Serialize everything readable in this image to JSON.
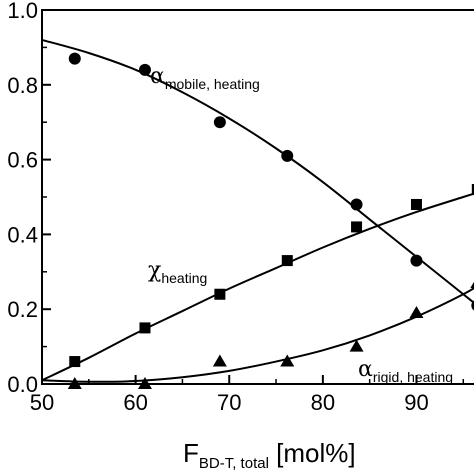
{
  "chart_data": {
    "type": "scatter",
    "xlabel": {
      "main": "F",
      "subscript": "BD-T, total",
      "unit": " [mol%]"
    },
    "xlim": [
      50,
      97
    ],
    "ylim": [
      0.0,
      1.0
    ],
    "x_ticks": [
      50,
      60,
      70,
      80,
      90
    ],
    "y_ticks": [
      0.0,
      0.2,
      0.4,
      0.6,
      0.8,
      1.0
    ],
    "y_tick_labels": [
      "0.0",
      "0.2",
      "0.4",
      "0.6",
      "0.8",
      "1.0"
    ],
    "series": [
      {
        "name": {
          "main": "α",
          "subscript": "mobile, heating"
        },
        "marker": "circle",
        "x": [
          53.5,
          61.0,
          69.0,
          76.2,
          83.6,
          90.0,
          96.5
        ],
        "y": [
          0.87,
          0.84,
          0.7,
          0.61,
          0.48,
          0.33,
          0.21
        ],
        "fit": {
          "x": [
            50,
            55,
            60,
            65,
            70,
            75,
            80,
            85,
            90,
            95,
            97
          ],
          "y": [
            0.92,
            0.885,
            0.84,
            0.78,
            0.71,
            0.63,
            0.54,
            0.44,
            0.34,
            0.24,
            0.2
          ]
        }
      },
      {
        "name": {
          "main": "χ",
          "subscript": "heating"
        },
        "marker": "square",
        "x": [
          53.5,
          61.0,
          69.0,
          76.2,
          83.6,
          90.0,
          96.5
        ],
        "y": [
          0.06,
          0.15,
          0.24,
          0.33,
          0.42,
          0.48,
          0.52
        ],
        "fit": {
          "x": [
            50,
            55,
            60,
            65,
            70,
            75,
            80,
            85,
            90,
            95,
            97
          ],
          "y": [
            0.01,
            0.07,
            0.135,
            0.195,
            0.255,
            0.31,
            0.365,
            0.415,
            0.46,
            0.5,
            0.515
          ]
        }
      },
      {
        "name": {
          "main": "α",
          "subscript": "rigid, heating"
        },
        "marker": "triangle",
        "x": [
          53.5,
          61.0,
          69.0,
          76.2,
          83.6,
          90.0,
          96.5
        ],
        "y": [
          0.0,
          0.0,
          0.06,
          0.06,
          0.1,
          0.19,
          0.27
        ],
        "fit": {
          "x": [
            50,
            55,
            60,
            65,
            70,
            75,
            80,
            85,
            90,
            95,
            97
          ],
          "y": [
            0.01,
            0.006,
            0.008,
            0.018,
            0.035,
            0.06,
            0.09,
            0.13,
            0.18,
            0.24,
            0.27
          ]
        }
      }
    ]
  }
}
